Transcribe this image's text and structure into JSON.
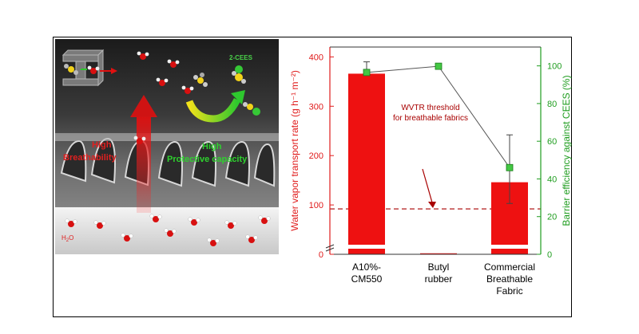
{
  "photo": {
    "top_label": "2-CEES",
    "high_breathability": "High\nBreathability",
    "high_protective": "High\nProtective capacity",
    "water_label": "H2O"
  },
  "colors": {
    "bar": "#ee1111",
    "left_axis": "#e01b1b",
    "right_axis": "#1f9d1f",
    "marker": "#44c844",
    "threshold": "#a80000"
  },
  "chart_data": {
    "type": "bar",
    "categories": [
      "A10%-CM550",
      "Butyl rubber",
      "Commercial Breathable Fabric"
    ],
    "category_lines": [
      [
        "A10%-",
        "CM550"
      ],
      [
        "Butyl",
        "rubber"
      ],
      [
        "Commercial",
        "Breathable",
        "Fabric"
      ]
    ],
    "series": [
      {
        "name": "Water vapor transport rate",
        "axis": "left",
        "type": "bar",
        "values": [
          366,
          2,
          146
        ],
        "error": [
          [
            null,
            390
          ],
          null,
          [
            103,
            242
          ]
        ]
      },
      {
        "name": "Barrier efficiency against CEES",
        "axis": "right",
        "type": "line",
        "values": [
          96.5,
          99.8,
          46
        ]
      }
    ],
    "threshold": {
      "value": 92,
      "label_lines": [
        "WVTR threshold",
        "for breathable fabrics"
      ]
    },
    "ylabel_left": "Water vapor transport rate (g h⁻¹ m⁻²)",
    "ylabel_right": "Barrier efficiency against CEES (%)",
    "ylim_left": [
      0,
      420
    ],
    "yticks_left": [
      0,
      100,
      200,
      300,
      400
    ],
    "ylim_right": [
      0,
      110
    ],
    "yticks_right": [
      0,
      20,
      40,
      60,
      80,
      100
    ],
    "axis_break": true
  }
}
